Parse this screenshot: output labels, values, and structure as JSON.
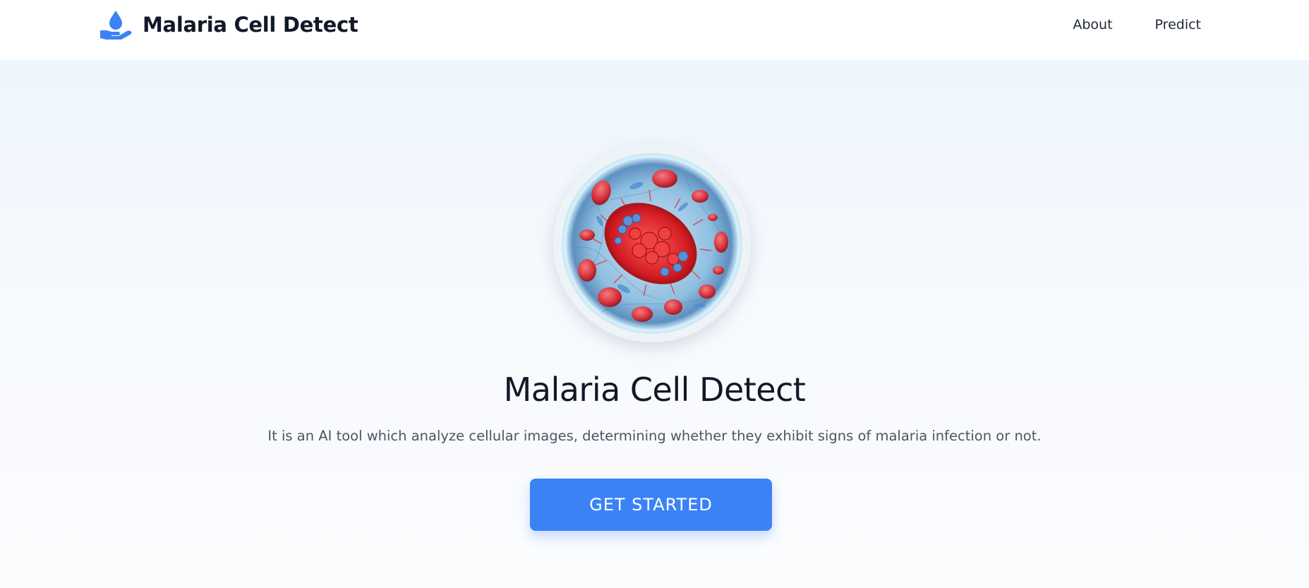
{
  "header": {
    "brand": "Malaria Cell Detect",
    "brand_icon": "hand-water-drop-icon",
    "nav": [
      {
        "label": "About"
      },
      {
        "label": "Predict"
      }
    ]
  },
  "hero": {
    "image_icon": "malaria-cell-illustration",
    "title": "Malaria Cell Detect",
    "description": "It is an AI tool which analyze cellular images, determining whether they exhibit signs of malaria infection or not.",
    "cta_label": "GET STARTED"
  },
  "colors": {
    "accent": "#3b82f6",
    "text_dark": "#111827",
    "text_muted": "#4b5563",
    "hero_bg": "#eef5fd"
  }
}
